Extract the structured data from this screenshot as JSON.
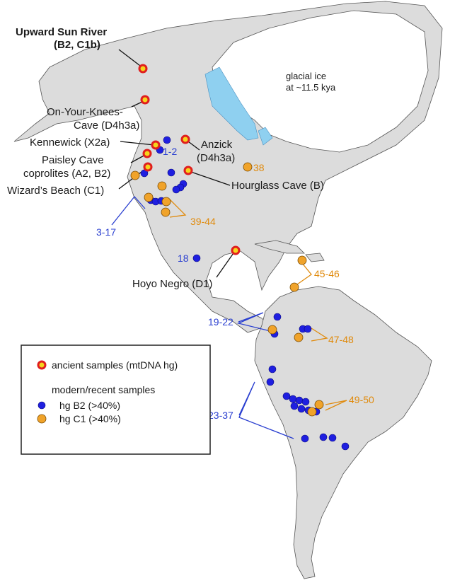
{
  "colors": {
    "land": "#dcdcdc",
    "ice": "#ffffff",
    "lake": "#8fd0f0",
    "ancient_fill": "#f5d51c",
    "ancient_ring": "#e01e1e",
    "b2": "#1f1fe0",
    "c1": "#f0a32a",
    "blue_text": "#2a3fd0",
    "orange_text": "#e08a0c"
  },
  "glacial_ice": {
    "line1": "glacial ice",
    "line2": "at ~11.5 kya"
  },
  "ancient_sites": [
    {
      "id": "usr",
      "line1": "Upward Sun River",
      "line2": "(B2, C1b)",
      "bold": true
    },
    {
      "id": "oykc",
      "line1": "On-Your-Knees-",
      "line2": "Cave (D4h3a)"
    },
    {
      "id": "kennewick",
      "line1": "Kennewick (X2a)"
    },
    {
      "id": "anzick",
      "line1": "Anzick",
      "line2": "(D4h3a)"
    },
    {
      "id": "paisley",
      "line1": "Paisley Cave",
      "line2": "coprolites (A2, B2)"
    },
    {
      "id": "hourglass",
      "line1": "Hourglass Cave (B)"
    },
    {
      "id": "wizard",
      "line1": "Wizard’s Beach (C1)"
    },
    {
      "id": "hoyo",
      "line1": "Hoyo Negro (D1)"
    }
  ],
  "group_labels": {
    "b2": [
      "1-2",
      "3-17",
      "18",
      "19-22",
      "23-37"
    ],
    "c1": [
      "38",
      "39-44",
      "45-46",
      "47-48",
      "49-50"
    ]
  },
  "legend": {
    "ancient_label": "ancient samples (mtDNA hg)",
    "modern_heading": "modern/recent samples",
    "b2_label": "hg B2 (>40%)",
    "c1_label": "hg C1 (>40%)"
  }
}
